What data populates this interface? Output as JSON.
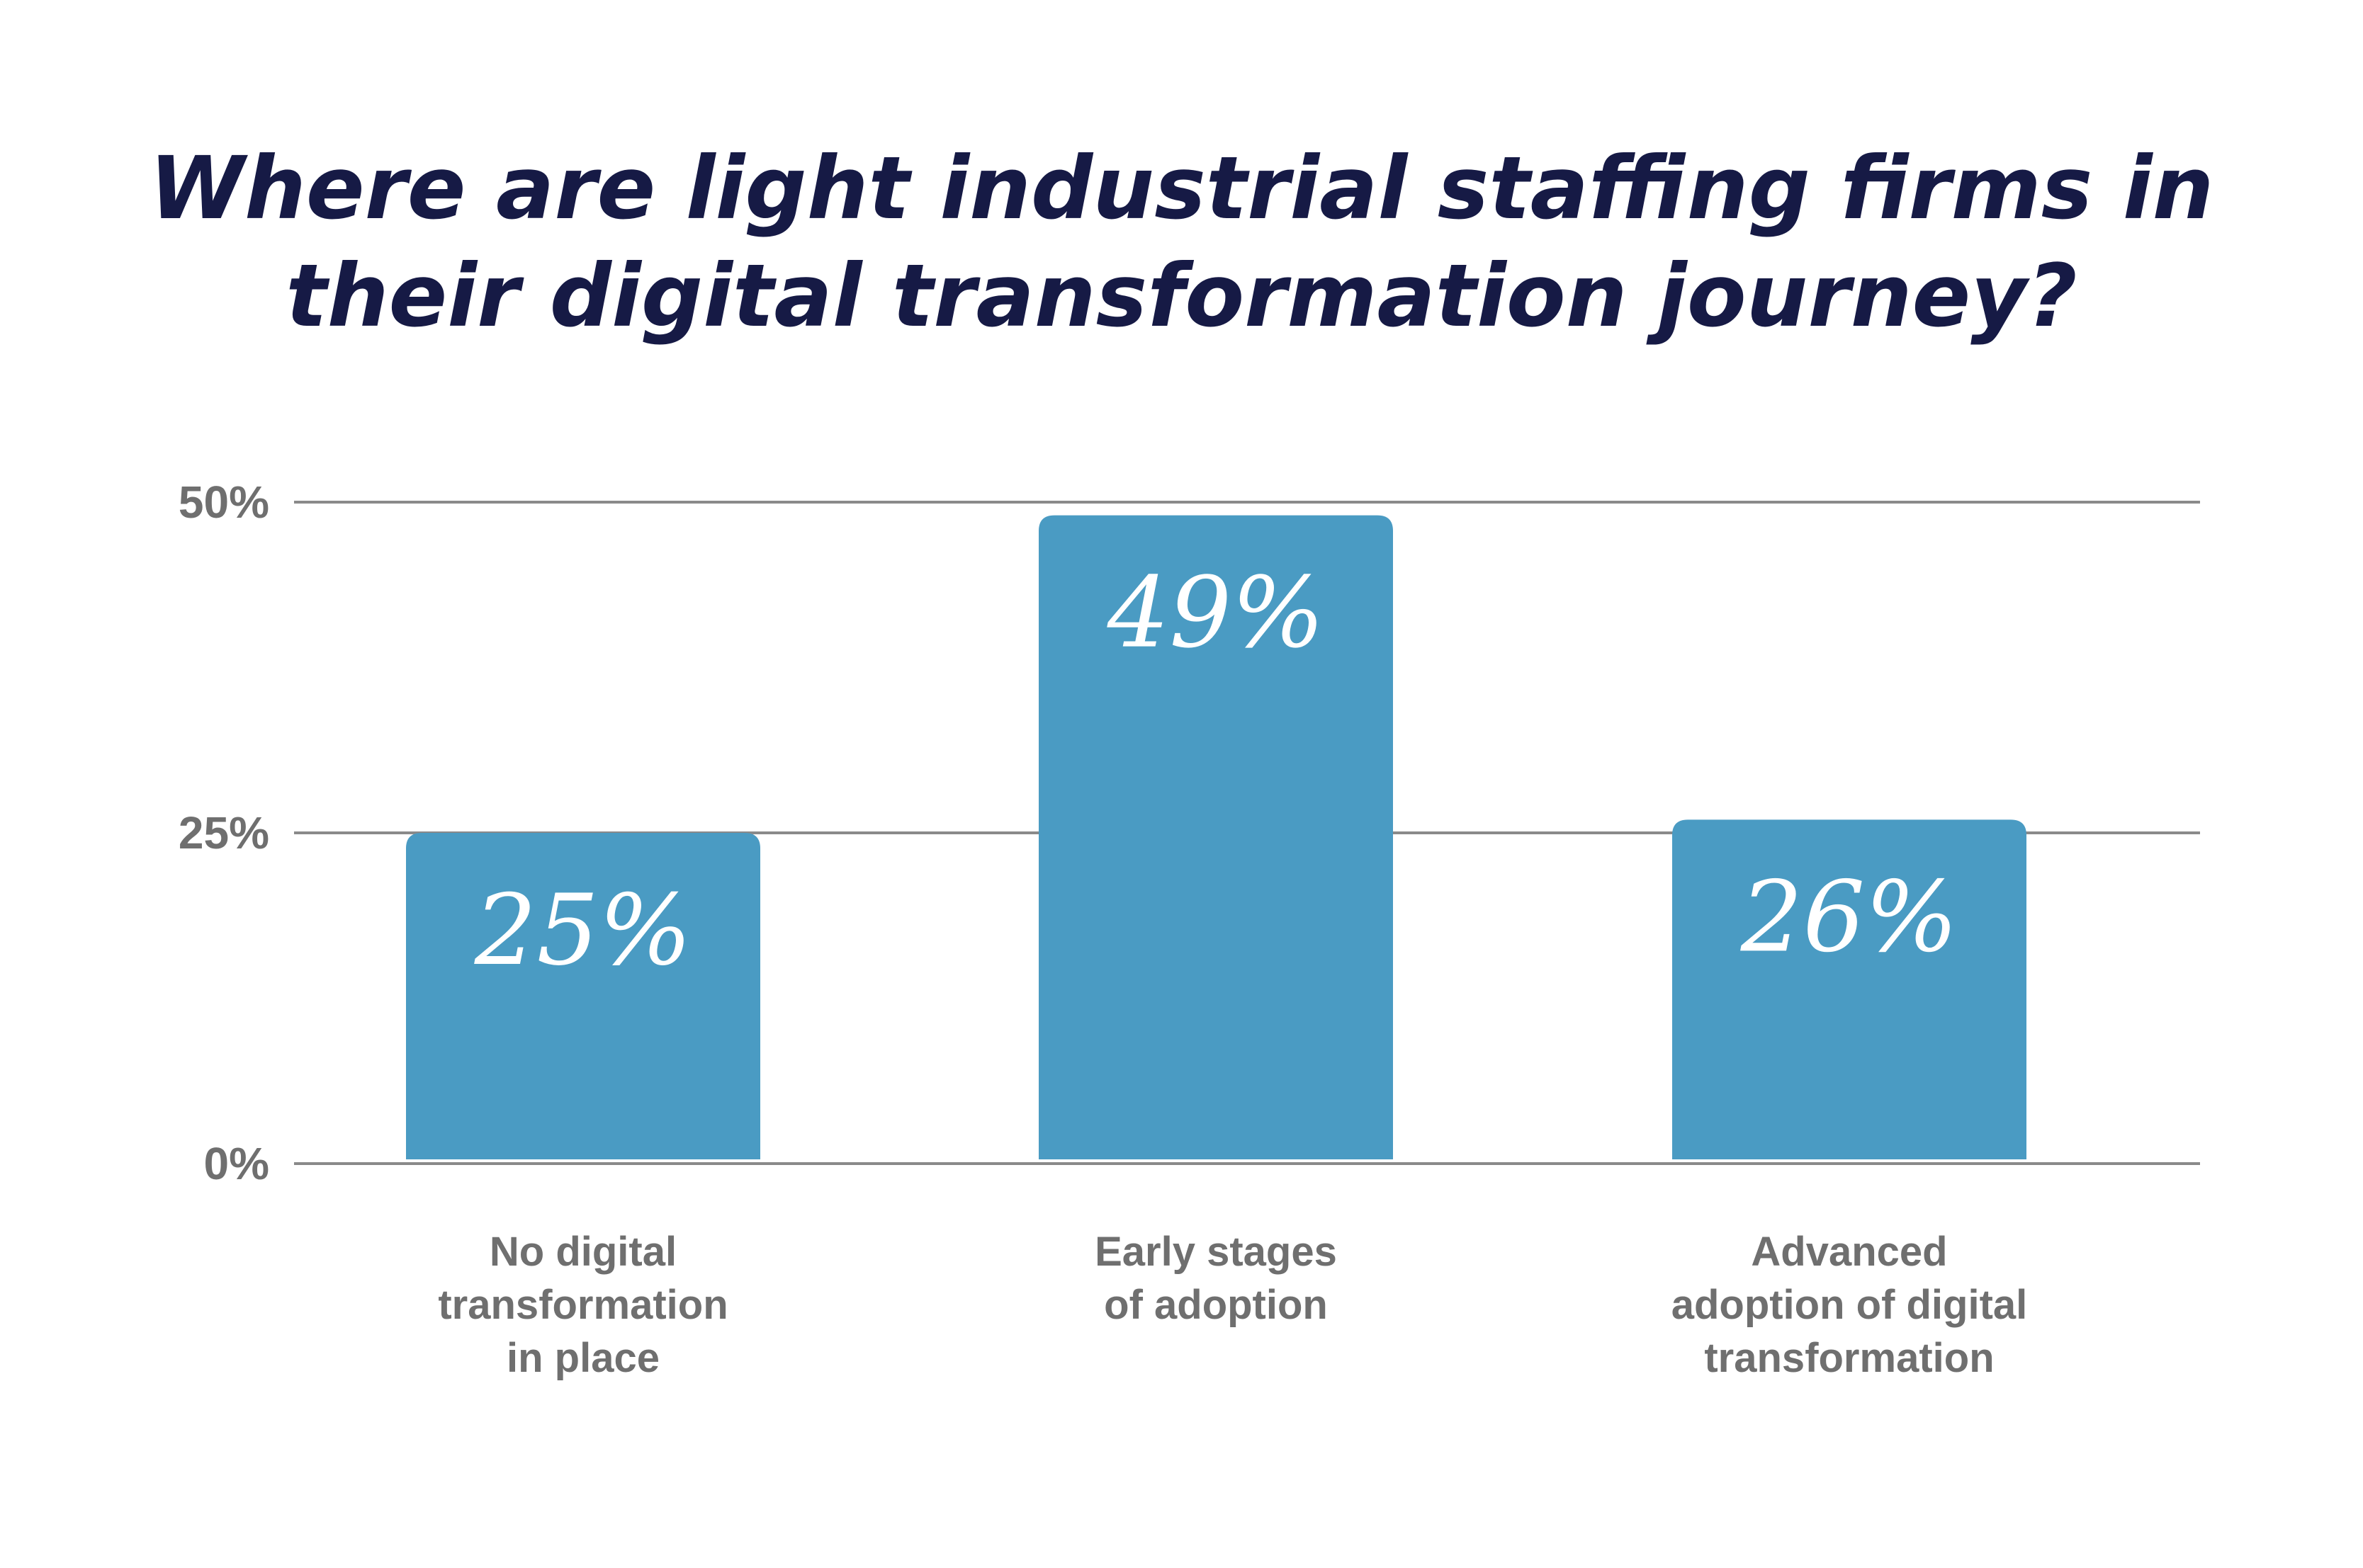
{
  "chart_data": {
    "type": "bar",
    "title_lines": [
      "Where are light industrial staffing firms in",
      "their digital transformation journey?"
    ],
    "categories": [
      [
        "No digital",
        "transformation",
        "in place"
      ],
      [
        "Early stages",
        "of adoption"
      ],
      [
        "Advanced",
        "adoption of digital",
        "transformation"
      ]
    ],
    "values": [
      25,
      49,
      26
    ],
    "value_labels": [
      "25%",
      "49%",
      "26%"
    ],
    "ylim": [
      0,
      50
    ],
    "yticks": [
      0,
      25,
      50
    ],
    "ytick_labels": [
      "0%",
      "25%",
      "50%"
    ],
    "grid": true,
    "colors": {
      "bar": "#4a9bc3",
      "title": "#161a45",
      "axis_text": "#6f6f6f",
      "gridline": "#8a8a8a",
      "value_label": "#ffffff"
    }
  }
}
